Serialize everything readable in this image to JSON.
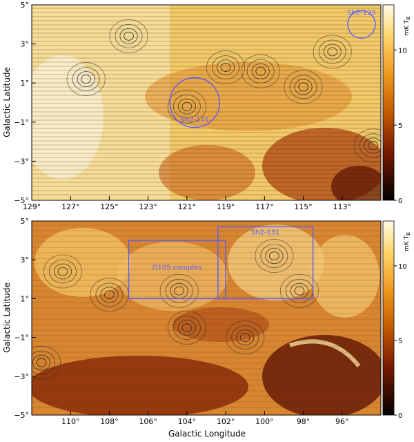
{
  "chart_data": [
    {
      "type": "heatmap",
      "panel": "upper",
      "xlabel": "",
      "ylabel": "Galactic Latitude",
      "xlim": [
        129,
        111
      ],
      "ylim": [
        -5,
        5
      ],
      "x_ticks": [
        "129°",
        "127°",
        "125°",
        "123°",
        "121°",
        "119°",
        "117°",
        "115°",
        "113°"
      ],
      "y_ticks": [
        "5°",
        "3°",
        "1°",
        "−1°",
        "−3°",
        "−5°"
      ],
      "colorbar": {
        "label": "mK T",
        "label_sub": "B",
        "ticks": [
          "0",
          "5",
          "10"
        ],
        "range": [
          0,
          13
        ]
      },
      "annotations": [
        {
          "text": "Sh2-129",
          "shape": "circle",
          "l": 112.0,
          "b": 4.0
        },
        {
          "text": "Sh2-171",
          "shape": "circle",
          "l": 120.6,
          "b": 0.0
        }
      ],
      "contours": [
        {
          "l": 126.2,
          "b": 1.2
        },
        {
          "l": 124.0,
          "b": 3.4
        },
        {
          "l": 117.2,
          "b": 1.6
        },
        {
          "l": 115.0,
          "b": 0.8
        },
        {
          "l": 111.4,
          "b": -2.2
        },
        {
          "l": 119.0,
          "b": 1.8
        },
        {
          "l": 113.5,
          "b": 2.6
        },
        {
          "l": 121.0,
          "b": -0.2
        }
      ]
    },
    {
      "type": "heatmap",
      "panel": "lower",
      "xlabel": "Galactic Longitude",
      "ylabel": "Galactic Latitude",
      "xlim": [
        112,
        94
      ],
      "ylim": [
        -5,
        5
      ],
      "x_ticks": [
        "110°",
        "108°",
        "106°",
        "104°",
        "102°",
        "100°",
        "98°",
        "96°"
      ],
      "y_ticks": [
        "5°",
        "3°",
        "1°",
        "−1°",
        "−3°",
        "−5°"
      ],
      "colorbar": {
        "label": "mK T",
        "label_sub": "B",
        "ticks": [
          "0",
          "5",
          "10"
        ],
        "range": [
          0,
          13
        ]
      },
      "annotations": [
        {
          "text": "G105 complex",
          "shape": "box",
          "l_min": 102.0,
          "l_max": 107.0,
          "b_min": 1.0,
          "b_max": 4.0
        },
        {
          "text": "Sh2-131",
          "shape": "box",
          "l_min": 97.5,
          "l_max": 102.4,
          "b_min": 1.0,
          "b_max": 4.7
        }
      ],
      "contours": [
        {
          "l": 110.4,
          "b": 2.4
        },
        {
          "l": 108.0,
          "b": 1.2
        },
        {
          "l": 104.4,
          "b": 1.4
        },
        {
          "l": 99.5,
          "b": 3.2
        },
        {
          "l": 98.2,
          "b": 1.4
        },
        {
          "l": 111.5,
          "b": -2.3
        },
        {
          "l": 101.0,
          "b": -1.0
        },
        {
          "l": 104.0,
          "b": -0.5
        }
      ]
    }
  ]
}
